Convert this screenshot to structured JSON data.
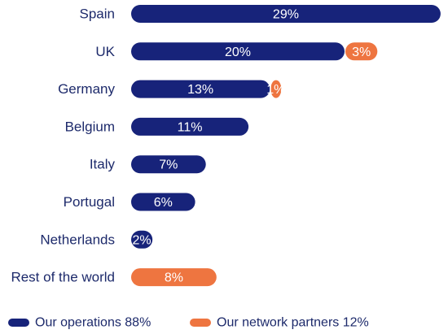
{
  "chart_data": {
    "type": "bar",
    "orientation": "horizontal",
    "stacked": true,
    "categories": [
      "Spain",
      "UK",
      "Germany",
      "Belgium",
      "Italy",
      "Portugal",
      "Netherlands",
      "Rest of the world"
    ],
    "series": [
      {
        "name": "Our operations",
        "color": "#17237a",
        "values": [
          29,
          20,
          13,
          11,
          7,
          6,
          2,
          0
        ],
        "labels": [
          "29%",
          "20%",
          "13%",
          "11%",
          "7%",
          "6%",
          "2%",
          ""
        ]
      },
      {
        "name": "Our network partners",
        "color": "#ee7540",
        "values": [
          0,
          3,
          1,
          0,
          0,
          0,
          0,
          8
        ],
        "labels": [
          "",
          "3%",
          "1%",
          "",
          "",
          "",
          "",
          "8%"
        ]
      }
    ],
    "legend": {
      "position": "bottom-left",
      "entries": [
        "Our operations 88%",
        "Our network partners 12%"
      ]
    },
    "grid": false
  }
}
